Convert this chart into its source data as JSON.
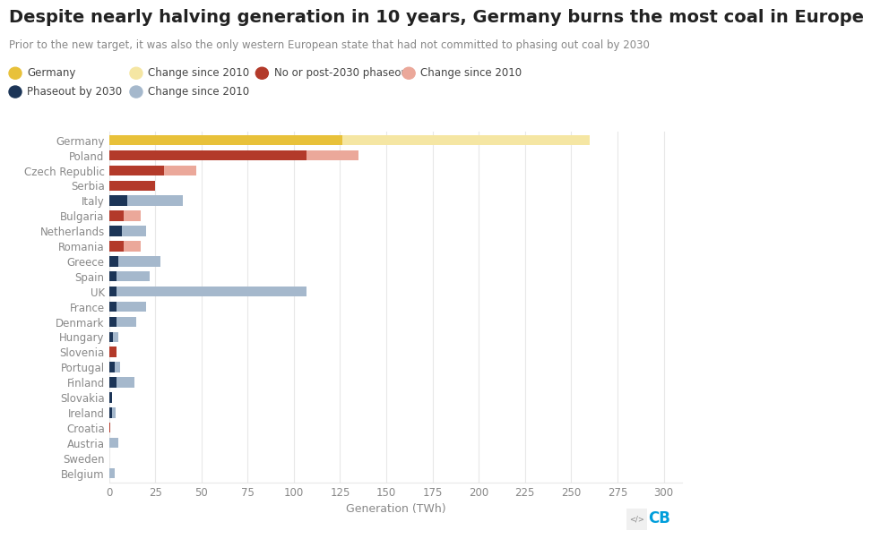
{
  "title": "Despite nearly halving generation in 10 years, Germany burns the most coal in Europe",
  "subtitle": "Prior to the new target, it was also the only western European state that had not committed to phasing out coal by 2030",
  "xlabel": "Generation (TWh)",
  "categories": [
    "Germany",
    "Poland",
    "Czech Republic",
    "Serbia",
    "Italy",
    "Bulgaria",
    "Netherlands",
    "Romania",
    "Greece",
    "Spain",
    "UK",
    "France",
    "Denmark",
    "Hungary",
    "Slovenia",
    "Portugal",
    "Finland",
    "Slovakia",
    "Ireland",
    "Croatia",
    "Austria",
    "Sweden",
    "Belgium"
  ],
  "bar_types": [
    "germany",
    "no_phaseout",
    "no_phaseout",
    "no_phaseout",
    "phaseout",
    "no_phaseout",
    "phaseout",
    "no_phaseout",
    "phaseout",
    "phaseout",
    "phaseout",
    "phaseout",
    "phaseout",
    "phaseout",
    "no_phaseout",
    "phaseout",
    "phaseout",
    "phaseout",
    "phaseout",
    "no_phaseout",
    "phaseout",
    "phaseout",
    "phaseout"
  ],
  "primary_values": [
    126,
    107,
    30,
    25,
    10,
    8,
    7,
    8,
    5,
    4,
    4,
    4,
    4,
    2,
    4,
    3,
    4,
    1.5,
    1.5,
    0.8,
    0,
    0,
    0
  ],
  "change_values": [
    134,
    28,
    17,
    0,
    30,
    9,
    13,
    9,
    23,
    18,
    103,
    16,
    11,
    3,
    0,
    3,
    10,
    0,
    2,
    0,
    5,
    0,
    3
  ],
  "colors": {
    "germany": "#E8C13A",
    "germany_change": "#F5E6A3",
    "no_phaseout": "#B33A2A",
    "no_phaseout_change": "#EBA89A",
    "phaseout": "#1C3557",
    "phaseout_change": "#A5B8CC",
    "background": "#FFFFFF",
    "grid": "#E8E8E8",
    "title_color": "#222222",
    "subtitle_color": "#888888",
    "tick_color": "#888888"
  },
  "xlim": [
    0,
    310
  ],
  "xticks": [
    0,
    25,
    50,
    75,
    100,
    125,
    150,
    175,
    200,
    225,
    250,
    275,
    300
  ],
  "legend_items": [
    {
      "label": "Germany",
      "color": "#E8C13A",
      "row": 0,
      "col": 0
    },
    {
      "label": "Change since 2010",
      "color": "#F5E6A3",
      "row": 0,
      "col": 1
    },
    {
      "label": "No or post-2030 phaseout",
      "color": "#B33A2A",
      "row": 0,
      "col": 2
    },
    {
      "label": "Change since 2010",
      "color": "#EBA89A",
      "row": 0,
      "col": 3
    },
    {
      "label": "Phaseout by 2030",
      "color": "#1C3557",
      "row": 1,
      "col": 0
    },
    {
      "label": "Change since 2010",
      "color": "#A5B8CC",
      "row": 1,
      "col": 1
    }
  ],
  "title_fontsize": 14,
  "subtitle_fontsize": 8.5,
  "label_fontsize": 9,
  "tick_fontsize": 8.5,
  "legend_fontsize": 8.5,
  "bar_height": 0.68
}
